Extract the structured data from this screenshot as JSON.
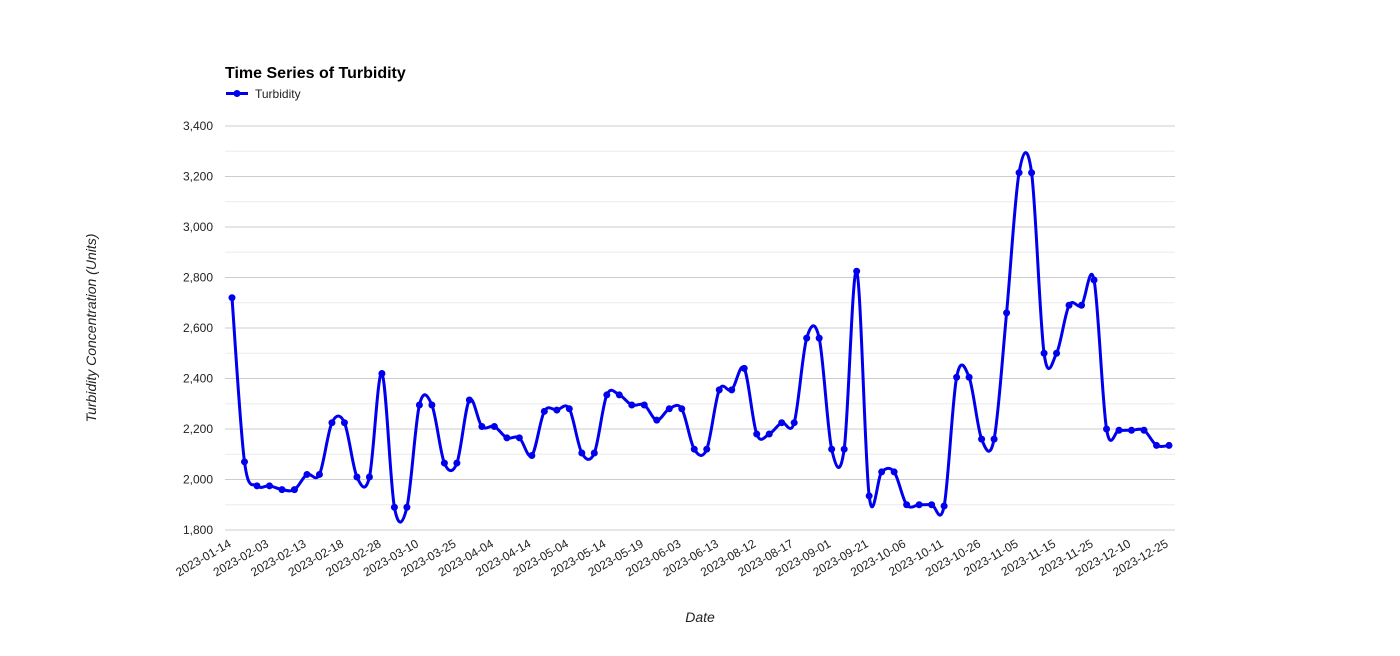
{
  "chart_data": {
    "type": "line",
    "title": "Time Series of Turbidity",
    "xlabel": "Date",
    "ylabel": "Turbidity Concentration (Units)",
    "legend": {
      "position": "top-left",
      "entries": [
        "Turbidity"
      ]
    },
    "ylim": [
      1800,
      3400
    ],
    "yticks": [
      1800,
      2000,
      2200,
      2400,
      2600,
      2800,
      3000,
      3200,
      3400
    ],
    "ytick_labels": [
      "1,800",
      "2,000",
      "2,200",
      "2,400",
      "2,600",
      "2,800",
      "3,000",
      "3,200",
      "3,400"
    ],
    "grid": true,
    "xtick_labels": [
      "2023-01-14",
      "2023-02-03",
      "2023-02-13",
      "2023-02-18",
      "2023-02-28",
      "2023-03-10",
      "2023-03-25",
      "2023-04-04",
      "2023-04-14",
      "2023-05-04",
      "2023-05-14",
      "2023-05-19",
      "2023-06-03",
      "2023-06-13",
      "2023-08-12",
      "2023-08-17",
      "2023-09-01",
      "2023-09-21",
      "2023-10-06",
      "2023-10-11",
      "2023-10-26",
      "2023-11-05",
      "2023-11-15",
      "2023-11-25",
      "2023-12-10",
      "2023-12-25"
    ],
    "series": [
      {
        "name": "Turbidity",
        "color": "#0000ee",
        "values": [
          2720,
          2070,
          1975,
          1975,
          1960,
          1960,
          2020,
          2020,
          2225,
          2225,
          2010,
          2010,
          2420,
          1890,
          1890,
          2295,
          2295,
          2065,
          2065,
          2315,
          2210,
          2210,
          2165,
          2165,
          2095,
          2270,
          2275,
          2280,
          2105,
          2105,
          2335,
          2335,
          2295,
          2295,
          2235,
          2280,
          2280,
          2120,
          2120,
          2355,
          2355,
          2440,
          2180,
          2180,
          2225,
          2225,
          2560,
          2560,
          2120,
          2120,
          2825,
          1935,
          2030,
          2030,
          1900,
          1900,
          1900,
          1895,
          2405,
          2405,
          2160,
          2160,
          2660,
          3215,
          3215,
          2500,
          2500,
          2690,
          2690,
          2790,
          2200,
          2195,
          2195,
          2195,
          2135,
          2135
        ]
      }
    ]
  }
}
